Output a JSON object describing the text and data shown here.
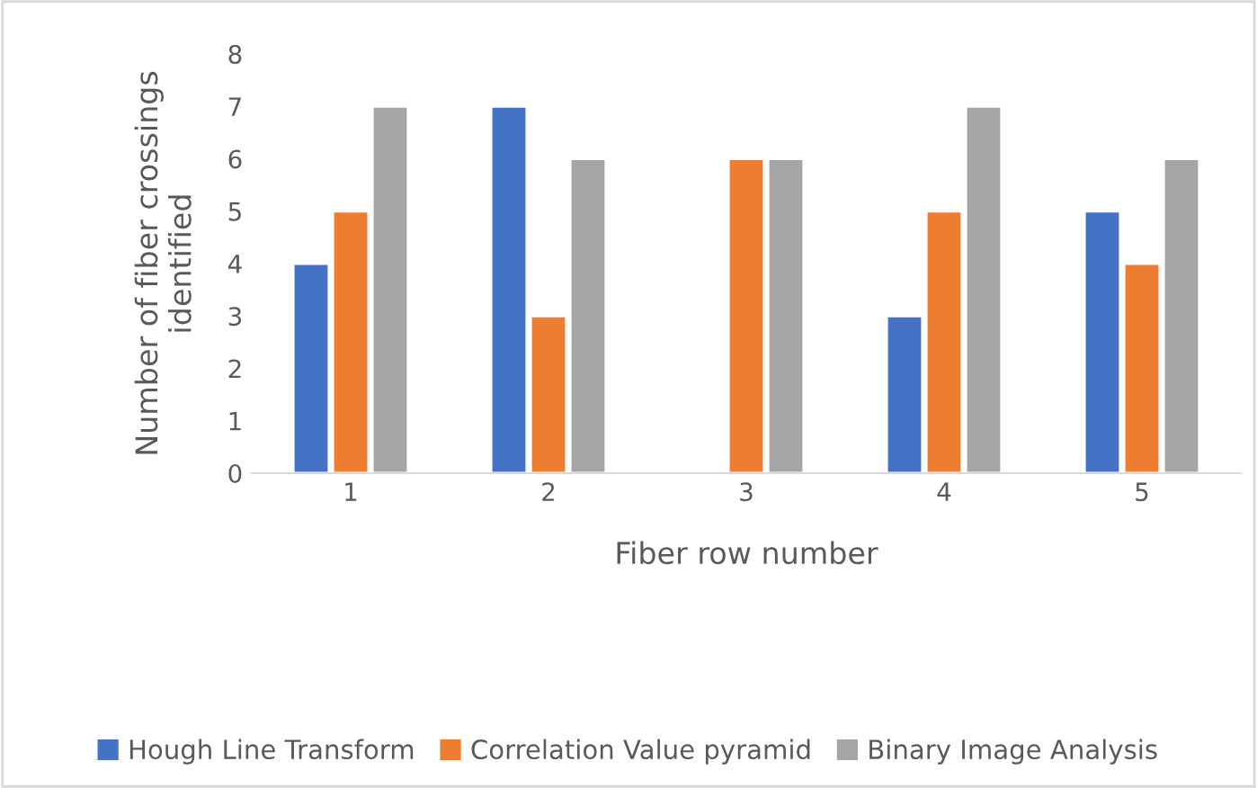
{
  "chart_data": {
    "type": "bar",
    "xlabel": "Fiber row number",
    "ylabel": "Number of fiber crossings identified",
    "categories": [
      "1",
      "2",
      "3",
      "4",
      "5"
    ],
    "series": [
      {
        "name": "Hough Line Transform",
        "color": "#4472c4",
        "values": [
          4,
          7,
          null,
          3,
          5
        ]
      },
      {
        "name": "Correlation Value pyramid",
        "color": "#ed7d31",
        "values": [
          5,
          3,
          6,
          5,
          4
        ]
      },
      {
        "name": "Binary Image Analysis",
        "color": "#a5a5a5",
        "values": [
          7,
          6,
          6,
          7,
          6
        ]
      }
    ],
    "ylim": [
      0,
      8
    ],
    "yticks": [
      0,
      1,
      2,
      3,
      4,
      5,
      6,
      7,
      8
    ],
    "grid": false,
    "legend": "bottom"
  }
}
